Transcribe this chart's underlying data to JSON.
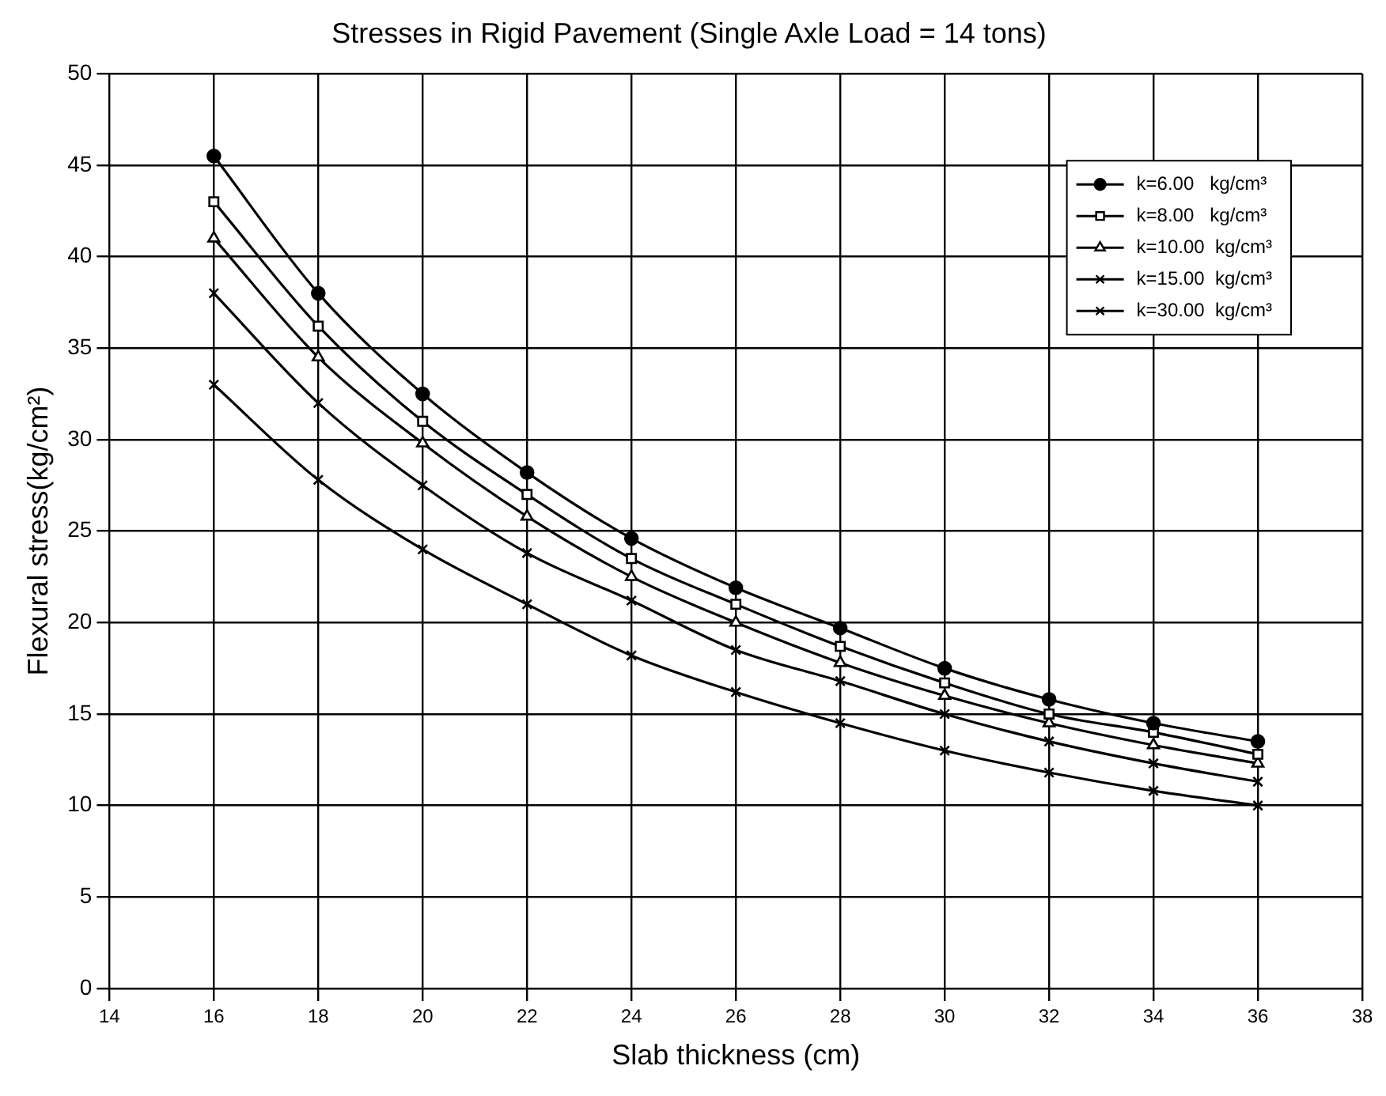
{
  "chart_data": {
    "type": "line",
    "title": "Stresses in Rigid Pavement (Single Axle Load = 14 tons)",
    "xlabel": "Slab thickness (cm)",
    "ylabel": "Flexural stress(kg/cm²)",
    "x": [
      16,
      18,
      20,
      22,
      24,
      26,
      28,
      30,
      32,
      34,
      36
    ],
    "series": [
      {
        "name": "k=6.00   kg/cm³",
        "color": "#000000",
        "marker": "circle",
        "values": [
          45.5,
          38,
          32.5,
          28.2,
          24.6,
          21.9,
          19.7,
          17.5,
          15.8,
          14.5,
          13.5
        ]
      },
      {
        "name": "k=8.00   kg/cm³",
        "color": "#000000",
        "marker": "square",
        "values": [
          43,
          36.2,
          31,
          27,
          23.5,
          21,
          18.7,
          16.7,
          15,
          14,
          12.8
        ]
      },
      {
        "name": "k=10.00  kg/cm³",
        "color": "#000000",
        "marker": "triangle",
        "values": [
          41,
          34.5,
          29.8,
          25.8,
          22.5,
          20,
          17.8,
          16,
          14.5,
          13.3,
          12.3
        ]
      },
      {
        "name": "k=15.00  kg/cm³",
        "color": "#000000",
        "marker": "cross",
        "values": [
          38,
          32,
          27.5,
          23.8,
          21.2,
          18.5,
          16.8,
          15,
          13.5,
          12.3,
          11.3
        ]
      },
      {
        "name": "k=30.00  kg/cm³",
        "color": "#000000",
        "marker": "cross",
        "values": [
          33,
          27.8,
          24,
          21,
          18.2,
          16.2,
          14.5,
          13,
          11.8,
          10.8,
          10
        ]
      }
    ],
    "xlim": [
      14,
      38
    ],
    "xticks": [
      14,
      16,
      18,
      20,
      22,
      24,
      26,
      28,
      30,
      32,
      34,
      36,
      38
    ],
    "ylim": [
      0,
      50
    ],
    "yticks": [
      0,
      5,
      10,
      15,
      20,
      25,
      30,
      35,
      40,
      45,
      50
    ],
    "grid": true,
    "legend": "top right",
    "line_style": "solid"
  }
}
